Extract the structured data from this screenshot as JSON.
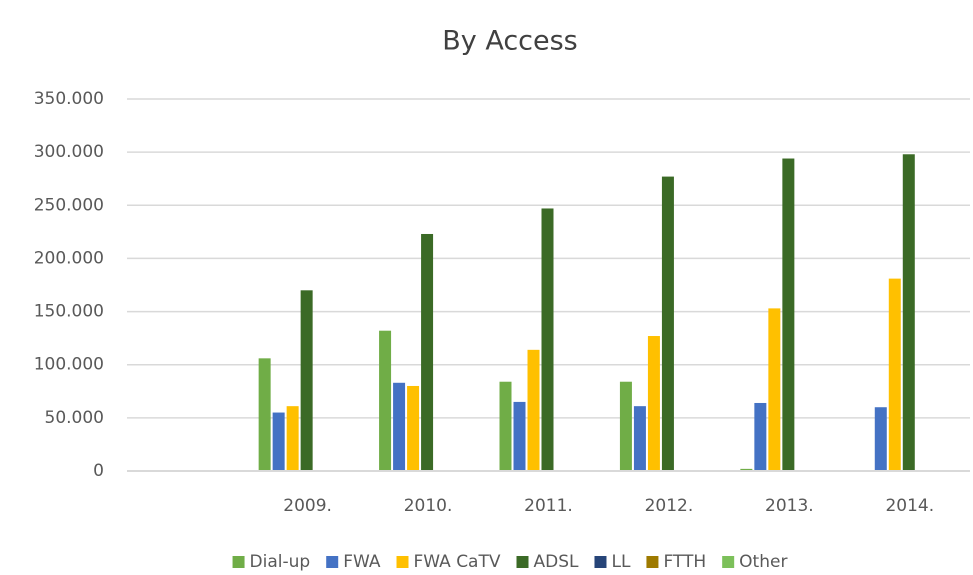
{
  "chart_data": {
    "type": "bar",
    "title": "By Access",
    "categories": [
      null,
      "2009.",
      "2010.",
      "2011.",
      "2012.",
      "2013.",
      "2014."
    ],
    "series": [
      {
        "name": "Dial-up",
        "color": "#70ad47",
        "values": [
          null,
          106000,
          132000,
          84000,
          84000,
          2000,
          null
        ]
      },
      {
        "name": "FWA",
        "color": "#4472c4",
        "values": [
          null,
          55000,
          83000,
          65000,
          61000,
          64000,
          60000
        ]
      },
      {
        "name": "FWA CaTV",
        "color": "#ffc000",
        "values": [
          null,
          61000,
          80000,
          114000,
          127000,
          153000,
          181000
        ]
      },
      {
        "name": "ADSL",
        "color": "#3b6a26",
        "values": [
          null,
          170000,
          223000,
          247000,
          277000,
          294000,
          298000
        ]
      },
      {
        "name": "LL",
        "color": "#264478",
        "values": [
          null,
          0,
          0,
          0,
          0,
          0,
          0
        ]
      },
      {
        "name": "FTTH",
        "color": "#9e7a00",
        "values": [
          null,
          0,
          0,
          0,
          0,
          0,
          0
        ]
      },
      {
        "name": "Other",
        "color": "#7cc05a",
        "values": [
          null,
          0,
          0,
          0,
          0,
          0,
          0
        ]
      }
    ],
    "ylim": [
      0,
      350000
    ],
    "yticks": [
      0,
      {
        "value": 50000,
        "label": "50.000"
      },
      {
        "value": 100000,
        "label": "100.000"
      },
      {
        "value": 150000,
        "label": "150.000"
      },
      {
        "value": 200000,
        "label": "200.000"
      },
      {
        "value": 250000,
        "label": "250.000"
      },
      {
        "value": 300000,
        "label": "300.000"
      },
      {
        "value": 350000,
        "label": "350.000"
      }
    ],
    "grid": true,
    "legend": "bottom"
  }
}
